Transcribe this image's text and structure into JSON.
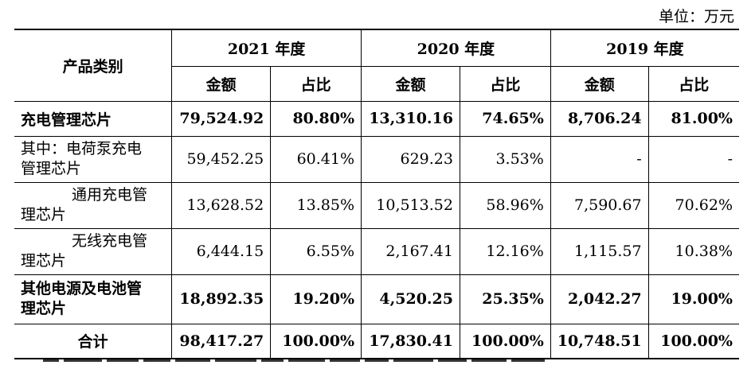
{
  "unit_label": "单位：万元",
  "header": {
    "category": "产品类别",
    "years": [
      "2021 年度",
      "2020 年度",
      "2019 年度"
    ],
    "amount": "金额",
    "ratio": "占比"
  },
  "rows": [
    {
      "label": "充电管理芯片",
      "bold": true,
      "values": [
        "79,524.92",
        "80.80%",
        "13,310.16",
        "74.65%",
        "8,706.24",
        "81.00%"
      ]
    },
    {
      "label_line1": "其中：电荷泵充电",
      "label_line2": "管理芯片",
      "bold": false,
      "values": [
        "59,452.25",
        "60.41%",
        "629.23",
        "3.53%",
        "-",
        "-"
      ]
    },
    {
      "label_line1": "通用充电管",
      "label_line2": "理芯片",
      "bold": false,
      "values": [
        "13,628.52",
        "13.85%",
        "10,513.52",
        "58.96%",
        "7,590.67",
        "70.62%"
      ]
    },
    {
      "label_line1": "无线充电管",
      "label_line2": "理芯片",
      "bold": false,
      "values": [
        "6,444.15",
        "6.55%",
        "2,167.41",
        "12.16%",
        "1,115.57",
        "10.38%"
      ]
    },
    {
      "label_line1": "其他电源及电池管",
      "label_line2": "理芯片",
      "bold": true,
      "values": [
        "18,892.35",
        "19.20%",
        "4,520.25",
        "25.35%",
        "2,042.27",
        "19.00%"
      ]
    },
    {
      "label": "合计",
      "bold": true,
      "values": [
        "98,417.27",
        "100.00%",
        "17,830.41",
        "100.00%",
        "10,748.51",
        "100.00%"
      ]
    }
  ]
}
